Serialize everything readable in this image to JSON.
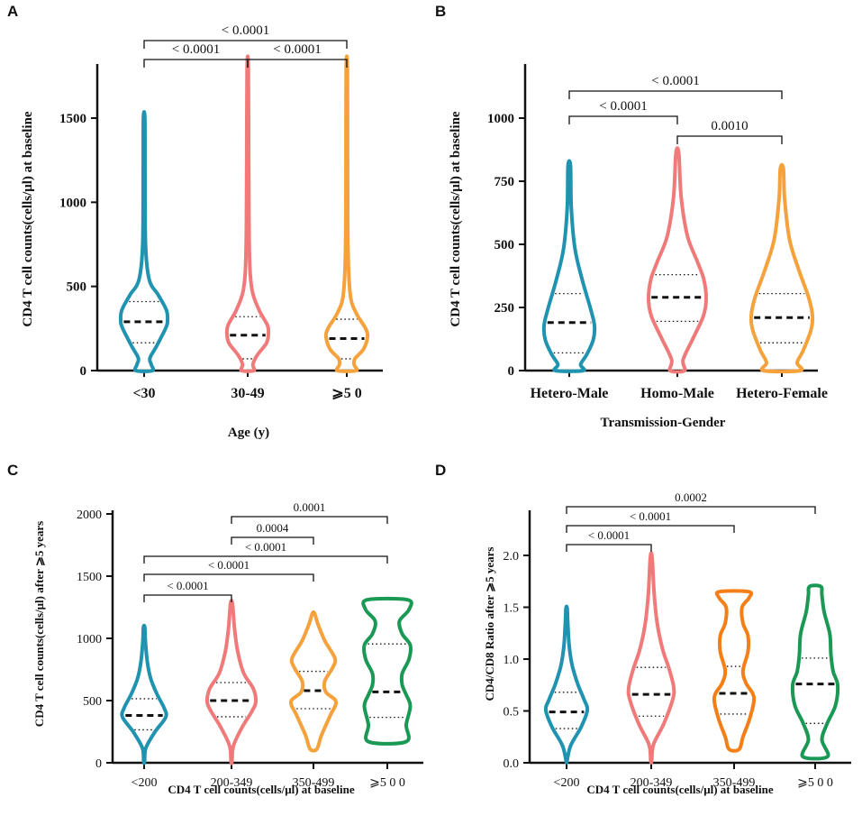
{
  "chart_data": [
    {
      "panel": "A",
      "type": "violin",
      "ylabel": "CD4 T cell counts(cells/μl) at baseline",
      "xlabel": "Age (y)",
      "ylim": [
        0,
        1800
      ],
      "yticks": [
        0,
        500,
        1000,
        1500
      ],
      "categories": [
        "<30",
        "30-49",
        "⩾5 0"
      ],
      "colors": [
        "#1f93b0",
        "#f07a7a",
        "#f5a13c"
      ],
      "max": [
        1500,
        1800,
        1800
      ],
      "median": [
        290,
        210,
        190
      ],
      "q1": [
        165,
        70,
        70
      ],
      "q3": [
        410,
        320,
        305
      ],
      "comparisons": [
        {
          "from": 0,
          "to": 2,
          "label": "< 0.0001"
        },
        {
          "from": 0,
          "to": 1,
          "label": "< 0.0001"
        },
        {
          "from": 1,
          "to": 2,
          "label": "< 0.0001"
        }
      ]
    },
    {
      "panel": "B",
      "type": "violin",
      "ylabel": "CD4 T cell counts(cells/μl) at baseline",
      "xlabel": "Transmission-Gender",
      "ylim": [
        0,
        1200
      ],
      "yticks": [
        0,
        250,
        500,
        750,
        1000
      ],
      "categories": [
        "Hetero-Male",
        "Homo-Male",
        "Hetero-Female"
      ],
      "colors": [
        "#1f93b0",
        "#f07a7a",
        "#f5a13c"
      ],
      "max": [
        810,
        860,
        800
      ],
      "median": [
        190,
        290,
        210
      ],
      "q1": [
        70,
        195,
        110
      ],
      "q3": [
        305,
        380,
        305
      ],
      "comparisons": [
        {
          "from": 0,
          "to": 2,
          "label": "< 0.0001"
        },
        {
          "from": 0,
          "to": 1,
          "label": "< 0.0001"
        },
        {
          "from": 1,
          "to": 2,
          "label": "0.0010"
        }
      ]
    },
    {
      "panel": "C",
      "type": "violin",
      "ylabel": "CD4 T cell counts(cells/μl) after ⩾5 years",
      "xlabel": "CD4 T cell counts(cells/μl) at baseline",
      "ylim": [
        0,
        2000
      ],
      "yticks": [
        0,
        500,
        1000,
        1500,
        2000
      ],
      "categories": [
        "<200",
        "200-349",
        "350-499",
        "⩾5 0 0"
      ],
      "colors": [
        "#1f93b0",
        "#f07a7a",
        "#f5a13c",
        "#1a9955"
      ],
      "min": [
        10,
        10,
        110,
        170
      ],
      "max": [
        1090,
        1280,
        1200,
        1310
      ],
      "median": [
        380,
        500,
        580,
        570
      ],
      "q1": [
        265,
        370,
        435,
        365
      ],
      "q3": [
        515,
        645,
        735,
        955
      ],
      "comparisons": [
        {
          "from": 1,
          "to": 3,
          "label": "0.0001"
        },
        {
          "from": 1,
          "to": 2,
          "label": "0.0004"
        },
        {
          "from": 0,
          "to": 3,
          "label": "< 0.0001"
        },
        {
          "from": 0,
          "to": 2,
          "label": "< 0.0001"
        },
        {
          "from": 0,
          "to": 1,
          "label": "< 0.0001"
        }
      ]
    },
    {
      "panel": "D",
      "type": "violin",
      "ylabel": "CD4/CD8 Ratio after ⩾5 years",
      "xlabel": "CD4 T cell counts(cells/μl) at baseline",
      "ylim": [
        0,
        2.4
      ],
      "yticks": [
        "0.0",
        "0.5",
        "1.0",
        "1.5",
        "2.0"
      ],
      "categories": [
        "<200",
        "200-349",
        "350-499",
        "⩾5 0 0"
      ],
      "colors": [
        "#1f93b0",
        "#f07a7a",
        "#f57f17",
        "#1a9955"
      ],
      "min": [
        0.02,
        0.02,
        0.13,
        0.06
      ],
      "max": [
        1.49,
        1.98,
        1.65,
        1.7
      ],
      "median": [
        0.49,
        0.66,
        0.67,
        0.76
      ],
      "q1": [
        0.33,
        0.45,
        0.47,
        0.38
      ],
      "q3": [
        0.68,
        0.92,
        0.93,
        1.01
      ],
      "comparisons": [
        {
          "from": 0,
          "to": 3,
          "label": "0.0002"
        },
        {
          "from": 0,
          "to": 2,
          "label": "< 0.0001"
        },
        {
          "from": 0,
          "to": 1,
          "label": "< 0.0001"
        }
      ]
    }
  ]
}
